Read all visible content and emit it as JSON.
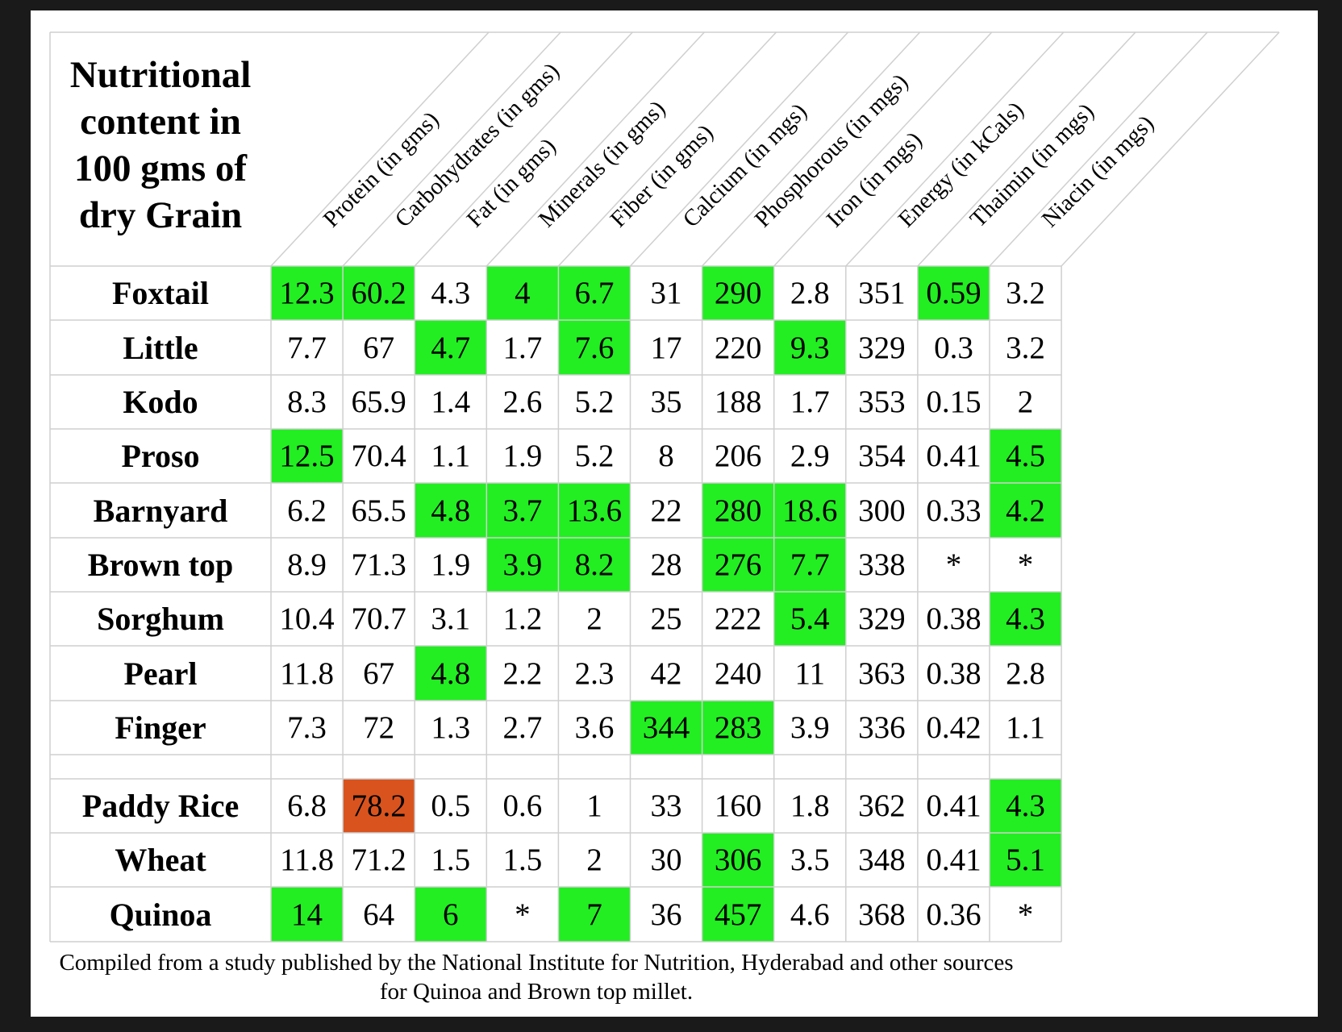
{
  "title": "Nutritional content in 100 gms of dry Grain",
  "caption": "Compiled from a study published by the National Institute for Nutrition, Hyderabad and other sources for Quinoa and Brown top millet.",
  "colors": {
    "highlight_green": "#22ee22",
    "highlight_red": "#d9531e",
    "grid_line": "#cfcfcf"
  },
  "columns": [
    "Protein (in gms)",
    "Carbohydrates (in gms)",
    "Fat (in gms)",
    "Minerals (in gms)",
    "Fiber (in gms)",
    "Calcium (in mgs)",
    "Phosphorous (in mgs)",
    "Iron (in mgs)",
    "Energy (in kCals)",
    "Thaimin (in mgs)",
    "Niacin (in mgs)"
  ],
  "rows": [
    {
      "name": "Foxtail",
      "values": [
        "12.3",
        "60.2",
        "4.3",
        "4",
        "6.7",
        "31",
        "290",
        "2.8",
        "351",
        "0.59",
        "3.2"
      ],
      "highlight": [
        "green",
        "green",
        "",
        "green",
        "green",
        "",
        "green",
        "",
        "",
        "green",
        ""
      ]
    },
    {
      "name": "Little",
      "values": [
        "7.7",
        "67",
        "4.7",
        "1.7",
        "7.6",
        "17",
        "220",
        "9.3",
        "329",
        "0.3",
        "3.2"
      ],
      "highlight": [
        "",
        "",
        "green",
        "",
        "green",
        "",
        "",
        "green",
        "",
        "",
        ""
      ]
    },
    {
      "name": "Kodo",
      "values": [
        "8.3",
        "65.9",
        "1.4",
        "2.6",
        "5.2",
        "35",
        "188",
        "1.7",
        "353",
        "0.15",
        "2"
      ],
      "highlight": [
        "",
        "",
        "",
        "",
        "",
        "",
        "",
        "",
        "",
        "",
        ""
      ]
    },
    {
      "name": "Proso",
      "values": [
        "12.5",
        "70.4",
        "1.1",
        "1.9",
        "5.2",
        "8",
        "206",
        "2.9",
        "354",
        "0.41",
        "4.5"
      ],
      "highlight": [
        "green",
        "",
        "",
        "",
        "",
        "",
        "",
        "",
        "",
        "",
        "green"
      ]
    },
    {
      "name": "Barnyard",
      "values": [
        "6.2",
        "65.5",
        "4.8",
        "3.7",
        "13.6",
        "22",
        "280",
        "18.6",
        "300",
        "0.33",
        "4.2"
      ],
      "highlight": [
        "",
        "",
        "green",
        "green",
        "green",
        "",
        "green",
        "green",
        "",
        "",
        "green"
      ]
    },
    {
      "name": "Brown top",
      "values": [
        "8.9",
        "71.3",
        "1.9",
        "3.9",
        "8.2",
        "28",
        "276",
        "7.7",
        "338",
        "*",
        "*"
      ],
      "highlight": [
        "",
        "",
        "",
        "green",
        "green",
        "",
        "green",
        "green",
        "",
        "",
        ""
      ]
    },
    {
      "name": "Sorghum",
      "values": [
        "10.4",
        "70.7",
        "3.1",
        "1.2",
        "2",
        "25",
        "222",
        "5.4",
        "329",
        "0.38",
        "4.3"
      ],
      "highlight": [
        "",
        "",
        "",
        "",
        "",
        "",
        "",
        "green",
        "",
        "",
        "green"
      ]
    },
    {
      "name": "Pearl",
      "values": [
        "11.8",
        "67",
        "4.8",
        "2.2",
        "2.3",
        "42",
        "240",
        "11",
        "363",
        "0.38",
        "2.8"
      ],
      "highlight": [
        "",
        "",
        "green",
        "",
        "",
        "",
        "",
        "",
        "",
        "",
        ""
      ]
    },
    {
      "name": "Finger",
      "values": [
        "7.3",
        "72",
        "1.3",
        "2.7",
        "3.6",
        "344",
        "283",
        "3.9",
        "336",
        "0.42",
        "1.1"
      ],
      "highlight": [
        "",
        "",
        "",
        "",
        "",
        "green",
        "green",
        "",
        "",
        "",
        ""
      ]
    },
    {
      "name": "",
      "values": [
        "",
        "",
        "",
        "",
        "",
        "",
        "",
        "",
        "",
        "",
        ""
      ],
      "highlight": [
        "",
        "",
        "",
        "",
        "",
        "",
        "",
        "",
        "",
        "",
        ""
      ]
    },
    {
      "name": "Paddy Rice",
      "values": [
        "6.8",
        "78.2",
        "0.5",
        "0.6",
        "1",
        "33",
        "160",
        "1.8",
        "362",
        "0.41",
        "4.3"
      ],
      "highlight": [
        "",
        "red",
        "",
        "",
        "",
        "",
        "",
        "",
        "",
        "",
        "green"
      ]
    },
    {
      "name": "Wheat",
      "values": [
        "11.8",
        "71.2",
        "1.5",
        "1.5",
        "2",
        "30",
        "306",
        "3.5",
        "348",
        "0.41",
        "5.1"
      ],
      "highlight": [
        "",
        "",
        "",
        "",
        "",
        "",
        "green",
        "",
        "",
        "",
        "green"
      ]
    },
    {
      "name": "Quinoa",
      "values": [
        "14",
        "64",
        "6",
        "*",
        "7",
        "36",
        "457",
        "4.6",
        "368",
        "0.36",
        "*"
      ],
      "highlight": [
        "green",
        "",
        "green",
        "",
        "green",
        "",
        "green",
        "",
        "",
        "",
        ""
      ]
    }
  ]
}
